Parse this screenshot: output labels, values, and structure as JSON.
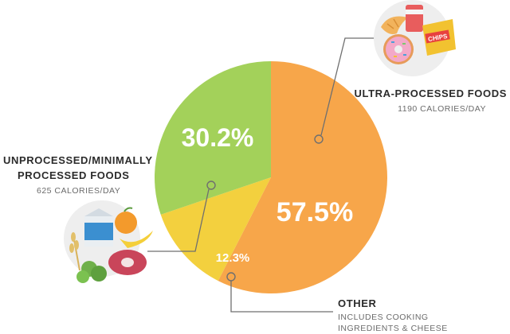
{
  "chart_data": {
    "type": "pie",
    "categories": [
      "Ultra-processed foods",
      "Other",
      "Unprocessed/minimally processed foods"
    ],
    "values": [
      57.5,
      12.3,
      30.2
    ],
    "value_labels": [
      "57.5%",
      "12.3%",
      "30.2%"
    ],
    "title": "",
    "legend": "none",
    "colors": {
      "ultra": "#f7a64a",
      "other": "#f3d03e",
      "unprocessed": "#a3d15a"
    }
  },
  "labels": {
    "ultra": {
      "title": "ULTRA-PROCESSED FOODS",
      "sub": "1190 CALORIES/DAY",
      "icon": "junk-food-icon",
      "icon_text": "CHIPS"
    },
    "unprocessed": {
      "title_line1": "UNPROCESSED/MINIMALLY",
      "title_line2": "PROCESSED FOODS",
      "sub": "625 CALORIES/DAY",
      "icon": "whole-foods-icon"
    },
    "other": {
      "title": "OTHER",
      "sub_line1": "INCLUDES COOKING",
      "sub_line2": "INGREDIENTS & CHEESE"
    }
  }
}
